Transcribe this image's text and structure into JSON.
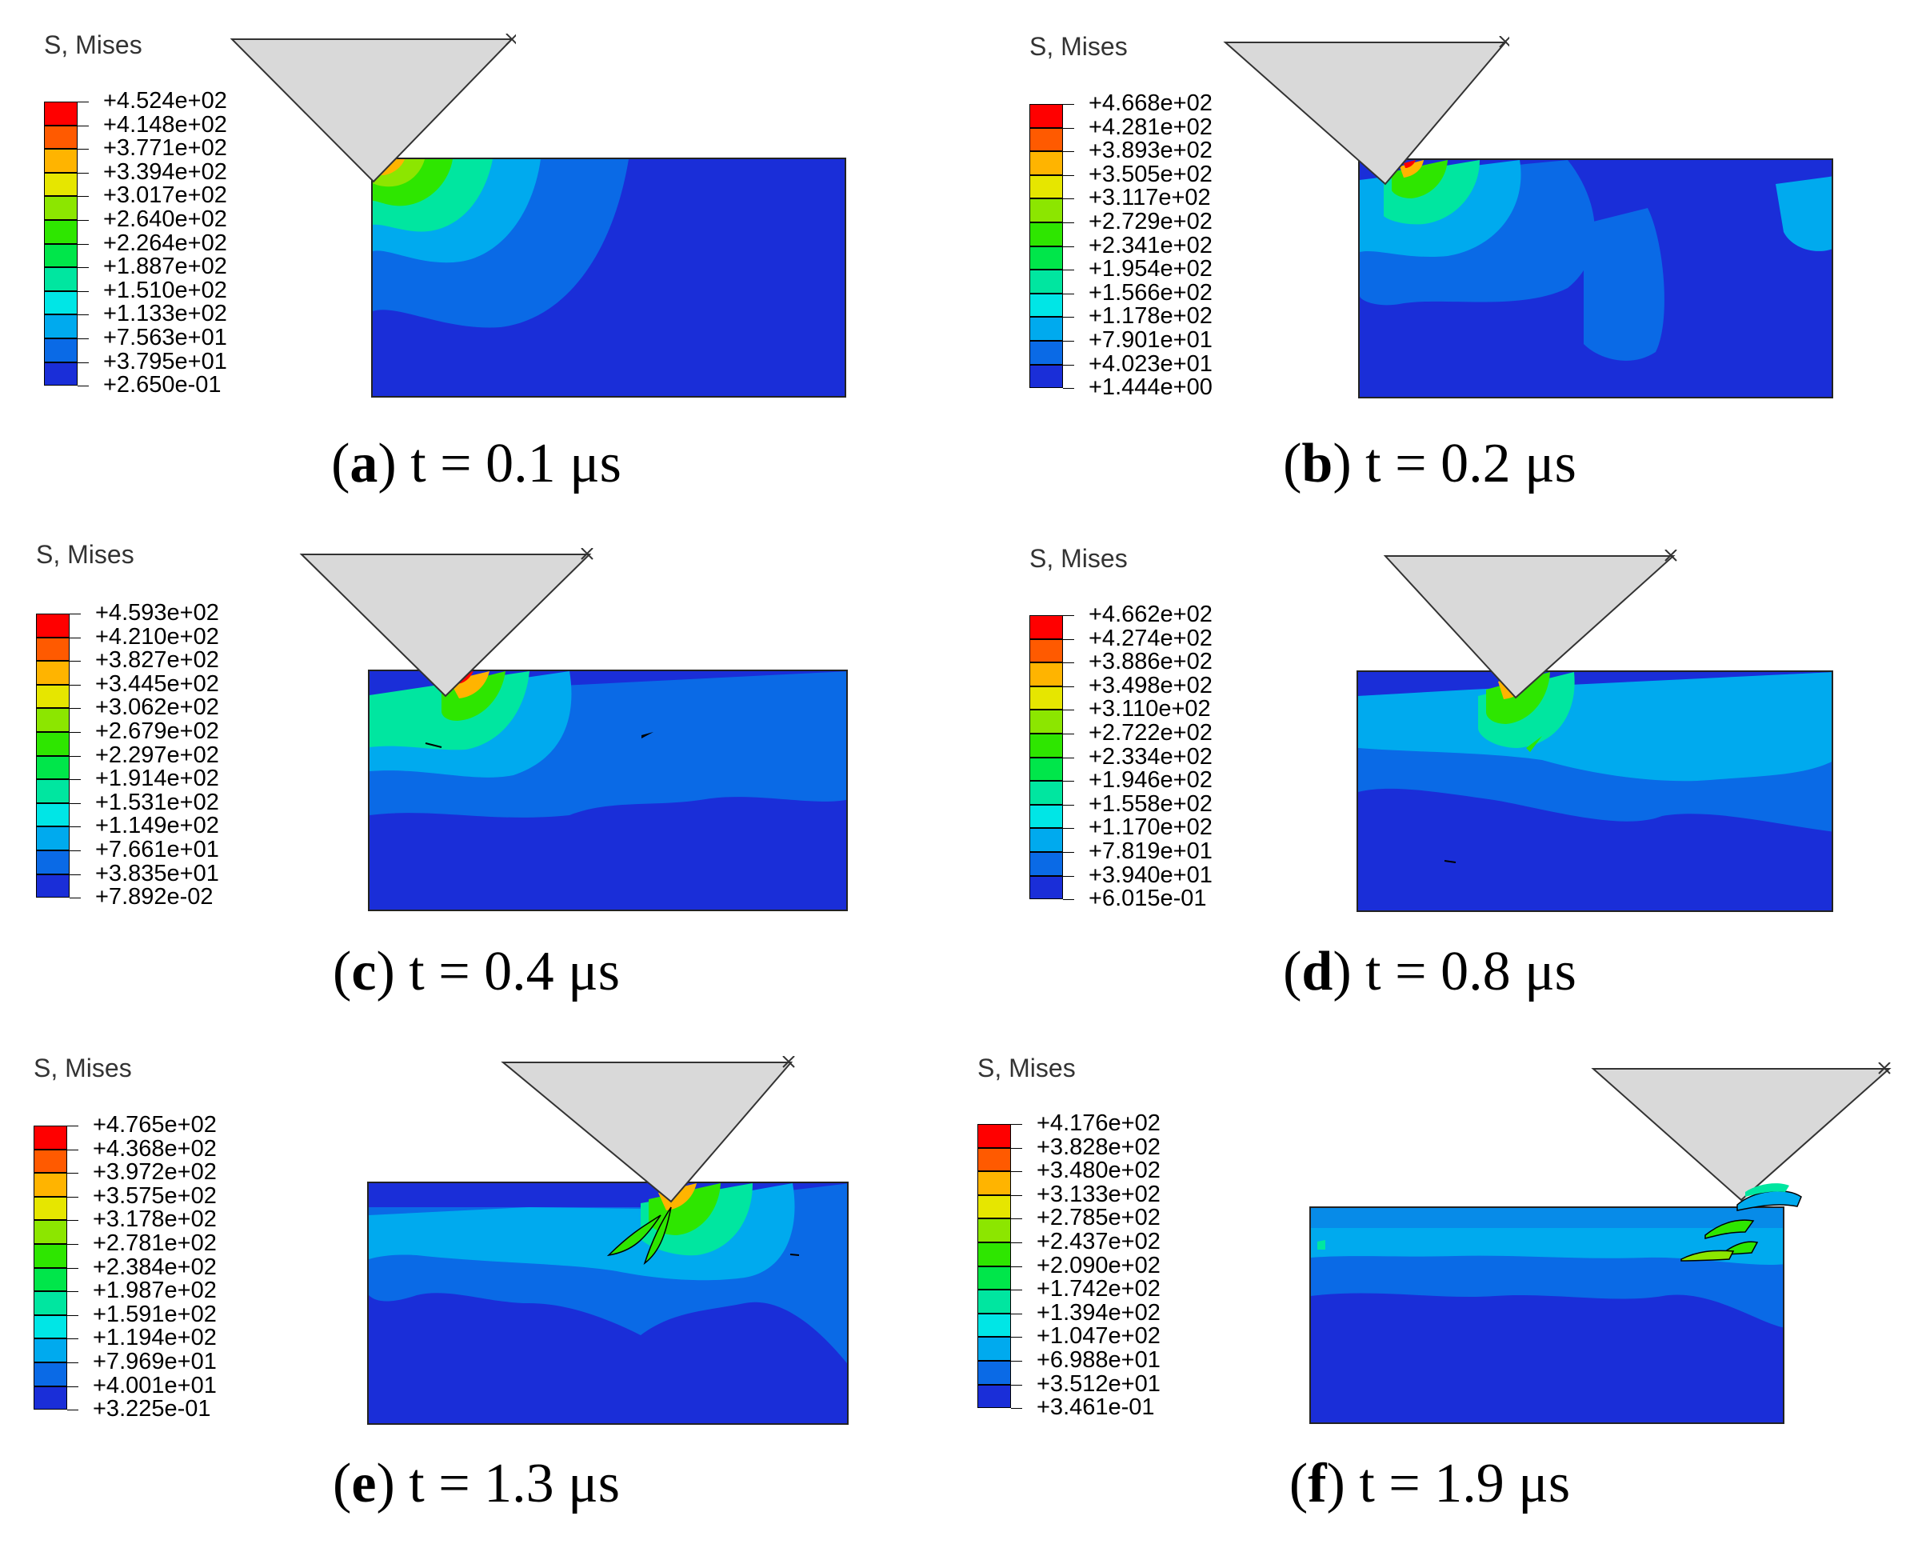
{
  "panels": [
    {
      "id": "a",
      "title": "S, Mises",
      "caption_letter": "a",
      "caption_text": "t = 0.1 μs",
      "legend_values": [
        "+4.524e+02",
        "+4.148e+02",
        "+3.771e+02",
        "+3.394e+02",
        "+3.017e+02",
        "+2.640e+02",
        "+2.264e+02",
        "+1.887e+02",
        "+1.510e+02",
        "+1.133e+02",
        "+7.563e+01",
        "+3.795e+01",
        "+2.650e-01"
      ]
    },
    {
      "id": "b",
      "title": "S, Mises",
      "caption_letter": "b",
      "caption_text": "t = 0.2 μs",
      "legend_values": [
        "+4.668e+02",
        "+4.281e+02",
        "+3.893e+02",
        "+3.505e+02",
        "+3.117e+02",
        "+2.729e+02",
        "+2.341e+02",
        "+1.954e+02",
        "+1.566e+02",
        "+1.178e+02",
        "+7.901e+01",
        "+4.023e+01",
        "+1.444e+00"
      ]
    },
    {
      "id": "c",
      "title": "S, Mises",
      "caption_letter": "c",
      "caption_text": "t = 0.4 μs",
      "legend_values": [
        "+4.593e+02",
        "+4.210e+02",
        "+3.827e+02",
        "+3.445e+02",
        "+3.062e+02",
        "+2.679e+02",
        "+2.297e+02",
        "+1.914e+02",
        "+1.531e+02",
        "+1.149e+02",
        "+7.661e+01",
        "+3.835e+01",
        "+7.892e-02"
      ]
    },
    {
      "id": "d",
      "title": "S, Mises",
      "caption_letter": "d",
      "caption_text": "t = 0.8 μs",
      "legend_values": [
        "+4.662e+02",
        "+4.274e+02",
        "+3.886e+02",
        "+3.498e+02",
        "+3.110e+02",
        "+2.722e+02",
        "+2.334e+02",
        "+1.946e+02",
        "+1.558e+02",
        "+1.170e+02",
        "+7.819e+01",
        "+3.940e+01",
        "+6.015e-01"
      ]
    },
    {
      "id": "e",
      "title": "S, Mises",
      "caption_letter": "e",
      "caption_text": "t = 1.3 μs",
      "legend_values": [
        "+4.765e+02",
        "+4.368e+02",
        "+3.972e+02",
        "+3.575e+02",
        "+3.178e+02",
        "+2.781e+02",
        "+2.384e+02",
        "+1.987e+02",
        "+1.591e+02",
        "+1.194e+02",
        "+7.969e+01",
        "+4.001e+01",
        "+3.225e-01"
      ]
    },
    {
      "id": "f",
      "title": "S, Mises",
      "caption_letter": "f",
      "caption_text": "t = 1.9 μs",
      "legend_values": [
        "+4.176e+02",
        "+3.828e+02",
        "+3.480e+02",
        "+3.133e+02",
        "+2.785e+02",
        "+2.437e+02",
        "+2.090e+02",
        "+1.742e+02",
        "+1.394e+02",
        "+1.047e+02",
        "+6.988e+01",
        "+3.512e+01",
        "+3.461e-01"
      ]
    }
  ],
  "colors": {
    "contour_bands": [
      "#ff0000",
      "#ff5a00",
      "#ffb400",
      "#e6e600",
      "#8ce600",
      "#2ee600",
      "#00e64a",
      "#00e6a0",
      "#00e6e6",
      "#00aaee",
      "#0a6ae6",
      "#1a2ed8"
    ],
    "tool": "#d9d9d9"
  }
}
